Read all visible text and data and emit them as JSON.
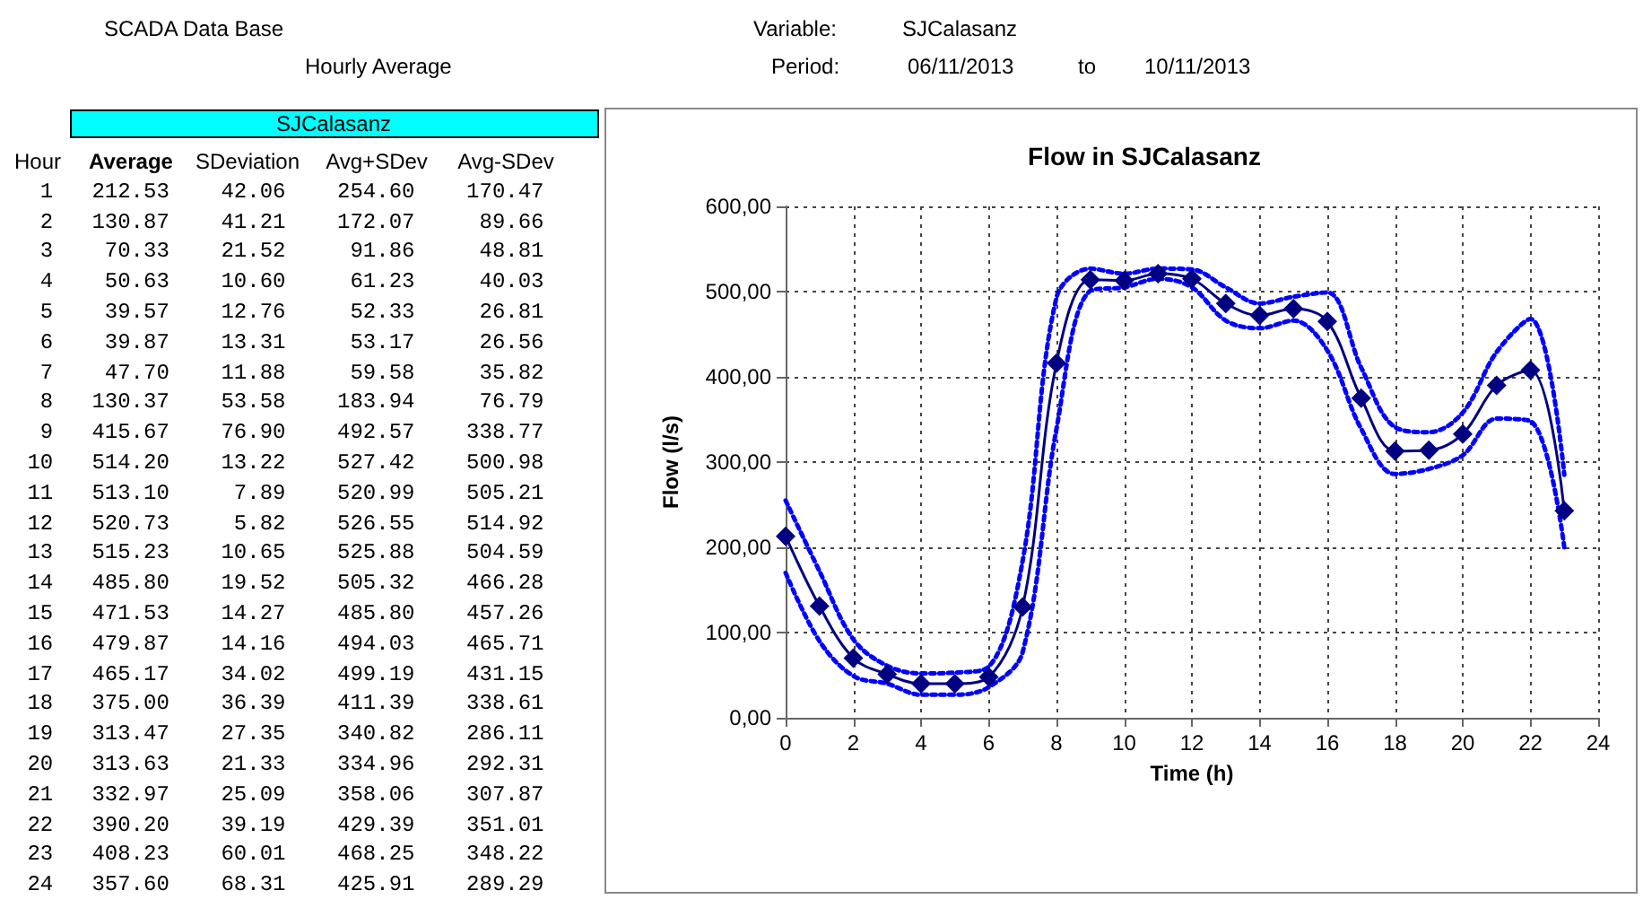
{
  "chart_data": [
    {
      "type": "other",
      "title": "SCADA Data Base",
      "subtitle": "Hourly Average",
      "annotations": [
        "Variable:",
        "SJCalasanz",
        "Period:",
        "06/11/2013",
        "to",
        "10/11/2013",
        "SJCalasanz",
        "Hour",
        "Average",
        "SDeviation",
        "Avg+SDev",
        "Avg-SDev",
        "1 212.53 42.06 254.60 170.47",
        "2 130.87 41.21 172.07 89.66",
        "3 70.33 21.52 91.86 48.81",
        "4 50.63 10.60 61.23 40.03",
        "5 39.57 12.76 52.33 26.81",
        "6 39.87 13.31 53.17 26.56",
        "7 47.70 11.88 59.58 35.82",
        "8 130.37 53.58 183.94 76.79",
        "9 415.67 76.90 492.57 338.77",
        "10 514.20 13.22 527.42 500.98",
        "11 513.10 7.89 520.99 505.21",
        "12 520.73 5.82 526.55 514.92",
        "13 515.23 10.65 525.88 504.59",
        "14 485.80 19.52 505.32 466.28",
        "15 471.53 14.27 485.80 457.26",
        "16 479.87 14.16 494.03 465.71",
        "17 465.17 34.02 499.19 431.15",
        "18 375.00 36.39 411.39 338.61",
        "19 313.47 27.35 340.82 286.11",
        "20 313.63 21.33 334.96 292.31",
        "21 332.97 25.09 358.06 307.87",
        "22 390.20 39.19 429.39 351.01",
        "23 408.23 60.01 468.25 348.22",
        "24 357.60 68.31 425.91 289.29"
      ]
    },
    {
      "type": "line",
      "title": "Flow in SJCalasanz",
      "xlabel": "Time (h)",
      "ylabel": "Flow (l/s)",
      "grid": true,
      "x": [
        0,
        1,
        2,
        3,
        4,
        5,
        6,
        7,
        8,
        9,
        10,
        11,
        12,
        13,
        14,
        15,
        16,
        17,
        18,
        19,
        20,
        21,
        22,
        23
      ],
      "xlim": [
        0,
        24
      ],
      "xticks": [
        0,
        2,
        4,
        6,
        8,
        10,
        12,
        14,
        16,
        18,
        20,
        22,
        24
      ],
      "ylim": [
        0,
        600
      ],
      "yticks": [
        {
          "value": 0,
          "label": "0,00"
        },
        {
          "value": 100,
          "label": "100,00"
        },
        {
          "value": 200,
          "label": "200,00"
        },
        {
          "value": 300,
          "label": "300,00"
        },
        {
          "value": 400,
          "label": "400,00"
        },
        {
          "value": 500,
          "label": "500,00"
        },
        {
          "value": 600,
          "label": "600,00"
        }
      ],
      "series": [
        {
          "color": "#0000ff",
          "marker": "none",
          "line_style": "dotted",
          "values": [
            255,
            172,
            92,
            61,
            52,
            53,
            60,
            184,
            493,
            527,
            521,
            527,
            526,
            505,
            486,
            494,
            499,
            411,
            341,
            335,
            358,
            429,
            468,
            285
          ]
        },
        {
          "color": "#0000ff",
          "marker": "none",
          "line_style": "dotted",
          "values": [
            170,
            90,
            49,
            40,
            27,
            27,
            36,
            77,
            339,
            501,
            505,
            515,
            505,
            466,
            457,
            466,
            431,
            339,
            286,
            292,
            308,
            351,
            348,
            200
          ]
        },
        {
          "color": "#000080",
          "marker": "diamond",
          "line_style": "solid",
          "values": [
            213,
            131,
            70,
            51,
            40,
            40,
            48,
            130,
            416,
            514,
            513,
            521,
            515,
            486,
            472,
            480,
            465,
            375,
            313,
            314,
            333,
            390,
            408,
            243
          ]
        }
      ]
    }
  ]
}
